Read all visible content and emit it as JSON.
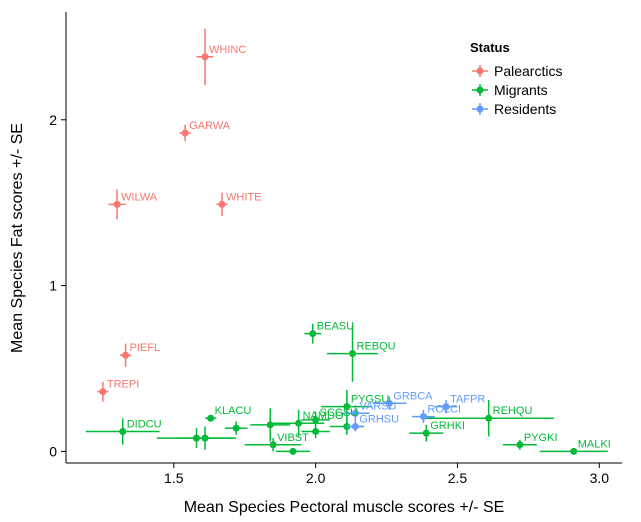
{
  "chart_data": {
    "type": "scatter",
    "title": "",
    "xlabel": "Mean Species Pectoral muscle scores +/- SE",
    "ylabel": "Mean Species Fat scores +/- SE",
    "xlim": [
      1.12,
      3.08
    ],
    "ylim": [
      -0.07,
      2.65
    ],
    "x_ticks": [
      1.5,
      2.0,
      2.5,
      3.0
    ],
    "x_tick_labels": [
      "1.5",
      "2.0",
      "2.5",
      "3.0"
    ],
    "y_ticks": [
      0,
      1,
      2
    ],
    "y_tick_labels": [
      "0",
      "1",
      "2"
    ],
    "grid": false,
    "legend_position": "top-right",
    "legend_title": "Status",
    "series": [
      {
        "name": "Palearctics",
        "color": "#F8766D",
        "points": [
          {
            "label": "WHINC",
            "x": 1.61,
            "y": 2.38,
            "xerr": 0.03,
            "yerr": 0.17
          },
          {
            "label": "GARWA",
            "x": 1.54,
            "y": 1.92,
            "xerr": 0.02,
            "yerr": 0.05
          },
          {
            "label": "WILWA",
            "x": 1.3,
            "y": 1.49,
            "xerr": 0.03,
            "yerr": 0.09
          },
          {
            "label": "WHITE",
            "x": 1.67,
            "y": 1.49,
            "xerr": 0.02,
            "yerr": 0.07
          },
          {
            "label": "PIEFL",
            "x": 1.33,
            "y": 0.58,
            "xerr": 0.02,
            "yerr": 0.07
          },
          {
            "label": "TREPI",
            "x": 1.25,
            "y": 0.36,
            "xerr": 0.02,
            "yerr": 0.06
          }
        ]
      },
      {
        "name": "Migrants",
        "color": "#00BA38",
        "points": [
          {
            "label": "BEASU",
            "x": 1.99,
            "y": 0.71,
            "xerr": 0.03,
            "yerr": 0.06
          },
          {
            "label": "REBQU",
            "x": 2.13,
            "y": 0.59,
            "xerr": 0.09,
            "yerr": 0.17
          },
          {
            "label": "PYGSU",
            "x": 2.11,
            "y": 0.27,
            "xerr": 0.09,
            "yerr": 0.1
          },
          {
            "label": "REHQU",
            "x": 2.61,
            "y": 0.2,
            "xerr": 0.23,
            "yerr": 0.11
          },
          {
            "label": "SCCSU",
            "x": 2.0,
            "y": 0.19,
            "xerr": 0.05,
            "yerr": 0.05
          },
          {
            "label": "NAMDO",
            "x": 1.94,
            "y": 0.17,
            "xerr": 0.09,
            "yerr": 0.08
          },
          {
            "label": "DIDCU",
            "x": 1.32,
            "y": 0.12,
            "xerr": 0.13,
            "yerr": 0.08
          },
          {
            "label": "KLACU",
            "x": 1.63,
            "y": 0.2,
            "xerr": 0.02,
            "yerr": 0.02
          },
          {
            "label": "",
            "x": 1.84,
            "y": 0.16,
            "xerr": 0.07,
            "yerr": 0.1
          },
          {
            "label": "",
            "x": 1.72,
            "y": 0.14,
            "xerr": 0.04,
            "yerr": 0.04
          },
          {
            "label": "",
            "x": 2.0,
            "y": 0.12,
            "xerr": 0.05,
            "yerr": 0.04
          },
          {
            "label": "",
            "x": 2.11,
            "y": 0.15,
            "xerr": 0.06,
            "yerr": 0.05
          },
          {
            "label": "",
            "x": 1.58,
            "y": 0.08,
            "xerr": 0.14,
            "yerr": 0.06
          },
          {
            "label": "",
            "x": 1.61,
            "y": 0.08,
            "xerr": 0.1,
            "yerr": 0.07
          },
          {
            "label": "VIBST",
            "x": 1.85,
            "y": 0.04,
            "xerr": 0.1,
            "yerr": 0.04
          },
          {
            "label": "",
            "x": 1.92,
            "y": 0.0,
            "xerr": 0.06,
            "yerr": 0.02
          },
          {
            "label": "GRHKI",
            "x": 2.39,
            "y": 0.11,
            "xerr": 0.06,
            "yerr": 0.05
          },
          {
            "label": "PYGKI",
            "x": 2.72,
            "y": 0.04,
            "xerr": 0.06,
            "yerr": 0.03
          },
          {
            "label": "MALKI",
            "x": 2.91,
            "y": 0.0,
            "xerr": 0.12,
            "yerr": 0.01
          }
        ]
      },
      {
        "name": "Residents",
        "color": "#619CFF",
        "points": [
          {
            "label": "GRBCA",
            "x": 2.26,
            "y": 0.29,
            "xerr": 0.06,
            "yerr": 0.04
          },
          {
            "label": "TAFPR",
            "x": 2.46,
            "y": 0.27,
            "xerr": 0.04,
            "yerr": 0.04
          },
          {
            "label": "VARSU",
            "x": 2.14,
            "y": 0.23,
            "xerr": 0.05,
            "yerr": 0.05
          },
          {
            "label": "ROLCI",
            "x": 2.38,
            "y": 0.21,
            "xerr": 0.04,
            "yerr": 0.04
          },
          {
            "label": "GRHSU",
            "x": 2.14,
            "y": 0.15,
            "xerr": 0.03,
            "yerr": 0.03
          }
        ]
      }
    ]
  }
}
